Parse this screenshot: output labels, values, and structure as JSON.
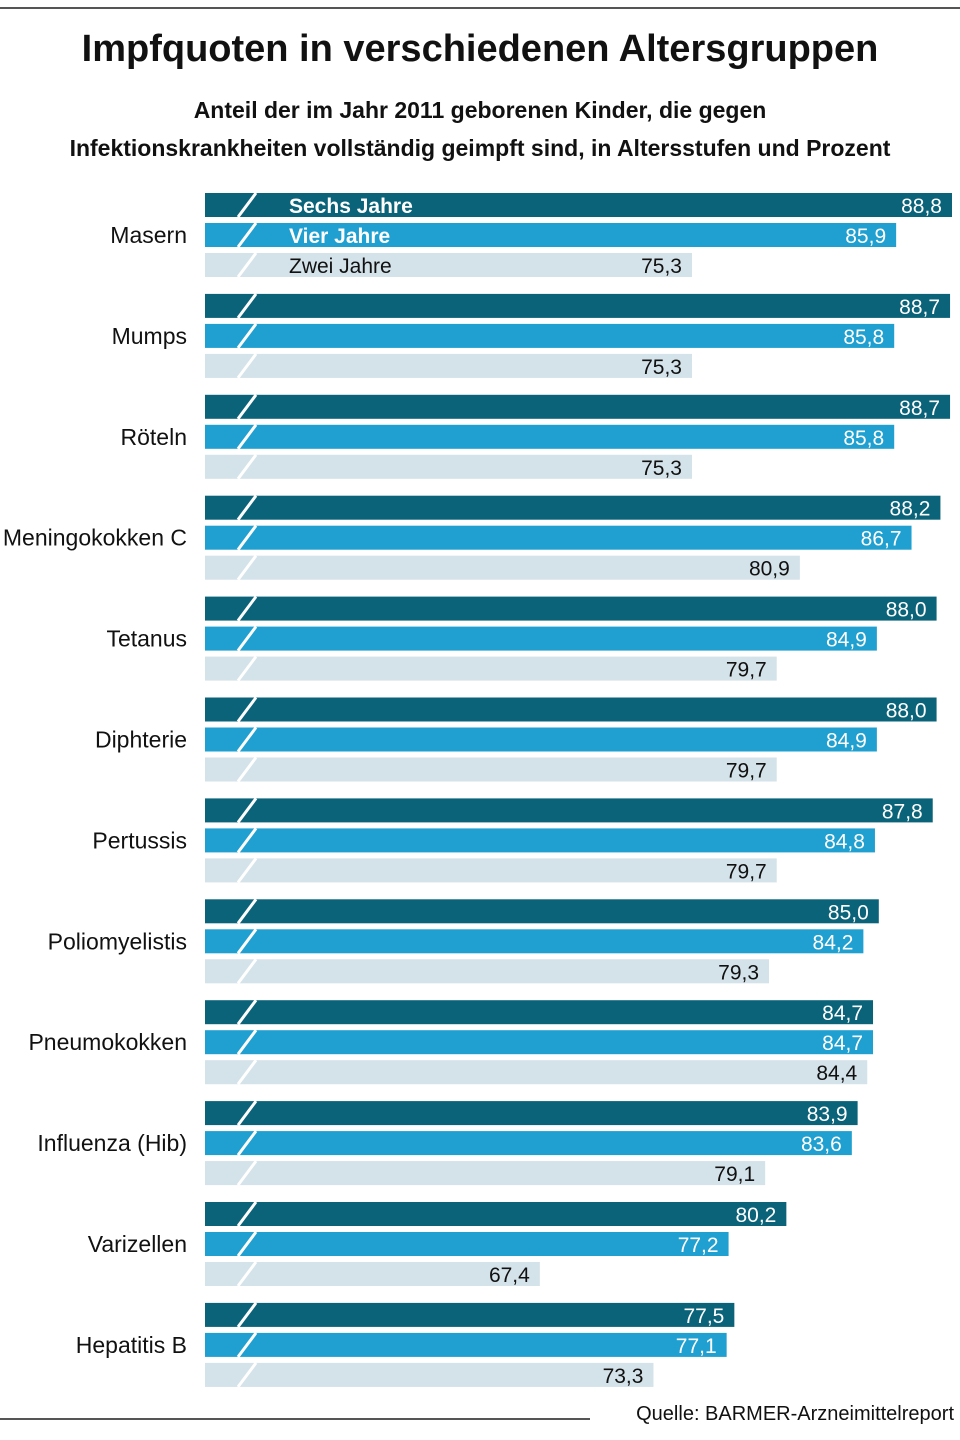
{
  "title": "Impfquoten in verschiedenen Altersgruppen",
  "subtitle_line1": "Anteil der im Jahr 2011 geborenen Kinder, die gegen",
  "subtitle_line2": "Infektionskrankheiten vollständig geimpft sind, in Altersstufen und Prozent",
  "source": "Quelle: BARMER-Arzneimittelreport",
  "chart_data": {
    "type": "bar",
    "orientation": "horizontal",
    "axis_break": true,
    "grid": false,
    "legend_placement": "inside first bar group",
    "categories": [
      "Masern",
      "Mumps",
      "Röteln",
      "Meningokokken C",
      "Tetanus",
      "Diphterie",
      "Pertussis",
      "Poliomyelistis",
      "Pneumokokken",
      "Influenza (Hib)",
      "Varizellen",
      "Hepatitis B"
    ],
    "series": [
      {
        "name": "Sechs Jahre",
        "color": "#0b6379",
        "label_color": "#ffffff",
        "values": [
          88.8,
          88.7,
          88.7,
          88.2,
          88.0,
          88.0,
          87.8,
          85.0,
          84.7,
          83.9,
          80.2,
          77.5
        ],
        "labels": [
          "88,8",
          "88,7",
          "88,7",
          "88,2",
          "88,0",
          "88,0",
          "87,8",
          "85,0",
          "84,7",
          "83,9",
          "80,2",
          "77,5"
        ]
      },
      {
        "name": "Vier Jahre",
        "color": "#1fa0d0",
        "label_color": "#ffffff",
        "values": [
          85.9,
          85.8,
          85.8,
          86.7,
          84.9,
          84.9,
          84.8,
          84.2,
          84.7,
          83.6,
          77.2,
          77.1
        ],
        "labels": [
          "85,9",
          "85,8",
          "85,8",
          "86,7",
          "84,9",
          "84,9",
          "84,8",
          "84,2",
          "84,7",
          "83,6",
          "77,2",
          "77,1"
        ]
      },
      {
        "name": "Zwei Jahre",
        "color": "#d4e2e9",
        "label_color": "#111111",
        "values": [
          75.3,
          75.3,
          75.3,
          80.9,
          79.7,
          79.7,
          79.7,
          79.3,
          84.4,
          79.1,
          67.4,
          73.3
        ],
        "labels": [
          "75,3",
          "75,3",
          "75,3",
          "80,9",
          "79,7",
          "79,7",
          "79,7",
          "79,3",
          "84,4",
          "79,1",
          "67,4",
          "73,3"
        ]
      }
    ]
  }
}
